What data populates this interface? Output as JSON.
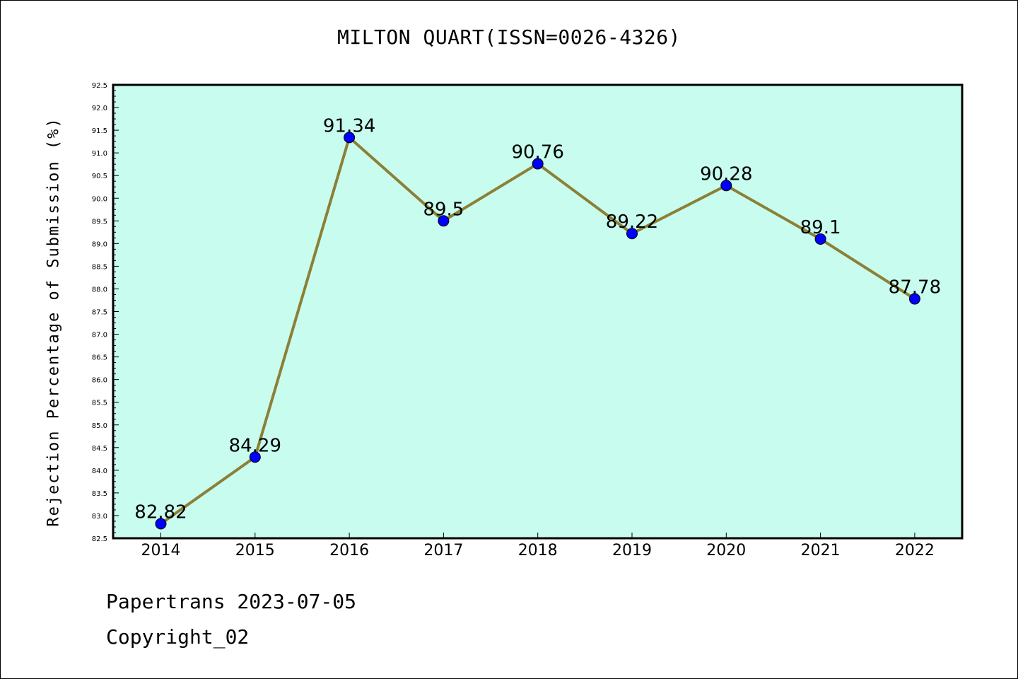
{
  "chart_data": {
    "type": "line",
    "title": "MILTON QUART(ISSN=0026-4326)",
    "xlabel": "",
    "ylabel": "Rejection Percentage of Submission (%)",
    "categories": [
      "2014",
      "2015",
      "2016",
      "2017",
      "2018",
      "2019",
      "2020",
      "2021",
      "2022"
    ],
    "series": [
      {
        "values": [
          82.82,
          84.29,
          91.34,
          89.5,
          90.76,
          89.22,
          90.28,
          89.1,
          87.78
        ]
      }
    ],
    "data_labels": [
      "82.82",
      "84.29",
      "91.34",
      "89.5",
      "90.76",
      "89.22",
      "90.28",
      "89.1",
      "87.78"
    ],
    "ylim": [
      82.5,
      92.5
    ],
    "ytick_step": 0.5,
    "grid": false,
    "colors": {
      "plot_background": "#c8fcee",
      "line": "#8b8036",
      "marker": "#0000ff"
    }
  },
  "footer": {
    "date_line": "Papertrans 2023-07-05",
    "copyright": "Copyright_02"
  }
}
